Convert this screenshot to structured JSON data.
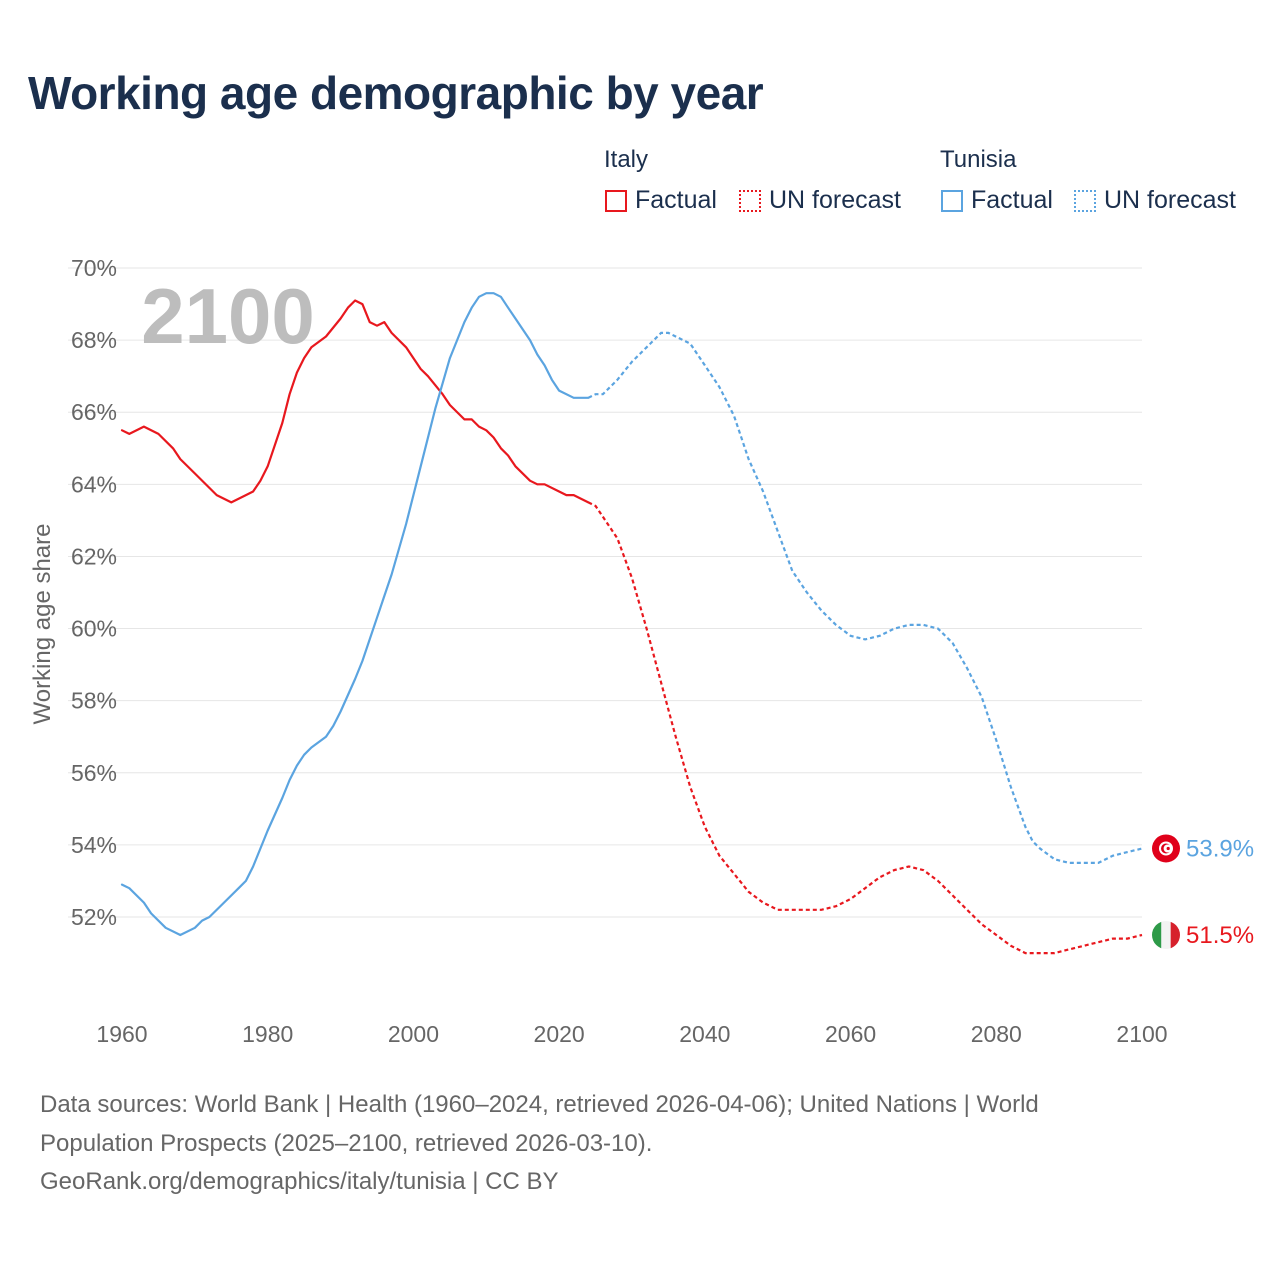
{
  "title": "Working age demographic by year",
  "legend": {
    "groups": [
      {
        "name": "Italy",
        "factual_label": "Factual",
        "forecast_label": "UN forecast",
        "color": "#e8181e"
      },
      {
        "name": "Tunisia",
        "factual_label": "Factual",
        "forecast_label": "UN forecast",
        "color": "#5ba4e0"
      }
    ]
  },
  "footer": {
    "line1": "Data sources: World Bank | Health (1960–2024, retrieved 2026-04-06); United Nations | World",
    "line2": "Population Prospects (2025–2100, retrieved 2026-03-10).",
    "line3": "GeoRank.org/demographics/italy/tunisia | CC BY"
  },
  "chart_data": {
    "type": "line",
    "title": "Working age demographic by year",
    "ylabel": "Working age share",
    "xlabel": "",
    "year_watermark": "2100",
    "xlim": [
      1960,
      2100
    ],
    "ylim": [
      50,
      70
    ],
    "x_ticks": [
      "1960",
      "1980",
      "2000",
      "2020",
      "2040",
      "2060",
      "2080",
      "2100"
    ],
    "y_ticks": [
      "52%",
      "54%",
      "56%",
      "58%",
      "60%",
      "62%",
      "64%",
      "66%",
      "68%",
      "70%"
    ],
    "factual_range": [
      1960,
      2024
    ],
    "forecast_range": [
      2025,
      2100
    ],
    "series": [
      {
        "name": "Italy",
        "color": "#e8181e",
        "flag": "italy-flag",
        "end_label": "51.5%",
        "points": [
          [
            1960,
            65.5
          ],
          [
            1961,
            65.4
          ],
          [
            1963,
            65.6
          ],
          [
            1965,
            65.4
          ],
          [
            1967,
            65.0
          ],
          [
            1968,
            64.7
          ],
          [
            1970,
            64.3
          ],
          [
            1972,
            63.9
          ],
          [
            1973,
            63.7
          ],
          [
            1975,
            63.5
          ],
          [
            1977,
            63.7
          ],
          [
            1978,
            63.8
          ],
          [
            1979,
            64.1
          ],
          [
            1980,
            64.5
          ],
          [
            1982,
            65.7
          ],
          [
            1983,
            66.5
          ],
          [
            1984,
            67.1
          ],
          [
            1985,
            67.5
          ],
          [
            1986,
            67.8
          ],
          [
            1988,
            68.1
          ],
          [
            1990,
            68.6
          ],
          [
            1991,
            68.9
          ],
          [
            1992,
            69.1
          ],
          [
            1993,
            69.0
          ],
          [
            1994,
            68.5
          ],
          [
            1995,
            68.4
          ],
          [
            1996,
            68.5
          ],
          [
            1997,
            68.2
          ],
          [
            1999,
            67.8
          ],
          [
            2000,
            67.5
          ],
          [
            2001,
            67.2
          ],
          [
            2002,
            67.0
          ],
          [
            2004,
            66.5
          ],
          [
            2005,
            66.2
          ],
          [
            2007,
            65.8
          ],
          [
            2008,
            65.8
          ],
          [
            2009,
            65.6
          ],
          [
            2010,
            65.5
          ],
          [
            2011,
            65.3
          ],
          [
            2012,
            65.0
          ],
          [
            2013,
            64.8
          ],
          [
            2014,
            64.5
          ],
          [
            2016,
            64.1
          ],
          [
            2017,
            64.0
          ],
          [
            2018,
            64.0
          ],
          [
            2020,
            63.8
          ],
          [
            2021,
            63.7
          ],
          [
            2022,
            63.7
          ],
          [
            2024,
            63.5
          ],
          [
            2025,
            63.4
          ],
          [
            2026,
            63.1
          ],
          [
            2028,
            62.5
          ],
          [
            2030,
            61.4
          ],
          [
            2032,
            60.0
          ],
          [
            2034,
            58.5
          ],
          [
            2036,
            57.0
          ],
          [
            2038,
            55.6
          ],
          [
            2040,
            54.5
          ],
          [
            2042,
            53.7
          ],
          [
            2044,
            53.2
          ],
          [
            2046,
            52.7
          ],
          [
            2048,
            52.4
          ],
          [
            2050,
            52.2
          ],
          [
            2052,
            52.2
          ],
          [
            2054,
            52.2
          ],
          [
            2056,
            52.2
          ],
          [
            2058,
            52.3
          ],
          [
            2060,
            52.5
          ],
          [
            2062,
            52.8
          ],
          [
            2064,
            53.1
          ],
          [
            2066,
            53.3
          ],
          [
            2068,
            53.4
          ],
          [
            2070,
            53.3
          ],
          [
            2072,
            53.0
          ],
          [
            2074,
            52.6
          ],
          [
            2076,
            52.2
          ],
          [
            2078,
            51.8
          ],
          [
            2080,
            51.5
          ],
          [
            2082,
            51.2
          ],
          [
            2084,
            51.0
          ],
          [
            2086,
            51.0
          ],
          [
            2088,
            51.0
          ],
          [
            2090,
            51.1
          ],
          [
            2092,
            51.2
          ],
          [
            2094,
            51.3
          ],
          [
            2096,
            51.4
          ],
          [
            2098,
            51.4
          ],
          [
            2100,
            51.5
          ]
        ]
      },
      {
        "name": "Tunisia",
        "color": "#5ba4e0",
        "flag": "tunisia-flag",
        "end_label": "53.9%",
        "points": [
          [
            1960,
            52.9
          ],
          [
            1961,
            52.8
          ],
          [
            1963,
            52.4
          ],
          [
            1964,
            52.1
          ],
          [
            1966,
            51.7
          ],
          [
            1968,
            51.5
          ],
          [
            1970,
            51.7
          ],
          [
            1971,
            51.9
          ],
          [
            1972,
            52.0
          ],
          [
            1974,
            52.4
          ],
          [
            1976,
            52.8
          ],
          [
            1977,
            53.0
          ],
          [
            1978,
            53.4
          ],
          [
            1980,
            54.4
          ],
          [
            1982,
            55.3
          ],
          [
            1983,
            55.8
          ],
          [
            1984,
            56.2
          ],
          [
            1985,
            56.5
          ],
          [
            1986,
            56.7
          ],
          [
            1988,
            57.0
          ],
          [
            1989,
            57.3
          ],
          [
            1990,
            57.7
          ],
          [
            1992,
            58.6
          ],
          [
            1993,
            59.1
          ],
          [
            1995,
            60.3
          ],
          [
            1997,
            61.5
          ],
          [
            1999,
            62.9
          ],
          [
            2001,
            64.5
          ],
          [
            2003,
            66.1
          ],
          [
            2005,
            67.5
          ],
          [
            2007,
            68.5
          ],
          [
            2008,
            68.9
          ],
          [
            2009,
            69.2
          ],
          [
            2010,
            69.3
          ],
          [
            2011,
            69.3
          ],
          [
            2012,
            69.2
          ],
          [
            2013,
            68.9
          ],
          [
            2014,
            68.6
          ],
          [
            2016,
            68.0
          ],
          [
            2017,
            67.6
          ],
          [
            2018,
            67.3
          ],
          [
            2019,
            66.9
          ],
          [
            2020,
            66.6
          ],
          [
            2022,
            66.4
          ],
          [
            2024,
            66.4
          ],
          [
            2025,
            66.5
          ],
          [
            2026,
            66.5
          ],
          [
            2028,
            66.9
          ],
          [
            2030,
            67.4
          ],
          [
            2032,
            67.8
          ],
          [
            2034,
            68.2
          ],
          [
            2035,
            68.2
          ],
          [
            2036,
            68.1
          ],
          [
            2038,
            67.9
          ],
          [
            2040,
            67.3
          ],
          [
            2042,
            66.7
          ],
          [
            2044,
            65.9
          ],
          [
            2046,
            64.7
          ],
          [
            2048,
            63.8
          ],
          [
            2050,
            62.7
          ],
          [
            2052,
            61.6
          ],
          [
            2054,
            61.0
          ],
          [
            2056,
            60.5
          ],
          [
            2058,
            60.1
          ],
          [
            2060,
            59.8
          ],
          [
            2062,
            59.7
          ],
          [
            2064,
            59.8
          ],
          [
            2066,
            60.0
          ],
          [
            2068,
            60.1
          ],
          [
            2070,
            60.1
          ],
          [
            2072,
            60.0
          ],
          [
            2074,
            59.6
          ],
          [
            2076,
            58.9
          ],
          [
            2078,
            58.1
          ],
          [
            2080,
            56.9
          ],
          [
            2082,
            55.6
          ],
          [
            2084,
            54.5
          ],
          [
            2085,
            54.1
          ],
          [
            2086,
            53.9
          ],
          [
            2088,
            53.6
          ],
          [
            2090,
            53.5
          ],
          [
            2092,
            53.5
          ],
          [
            2094,
            53.5
          ],
          [
            2096,
            53.7
          ],
          [
            2098,
            53.8
          ],
          [
            2100,
            53.9
          ]
        ]
      }
    ]
  }
}
